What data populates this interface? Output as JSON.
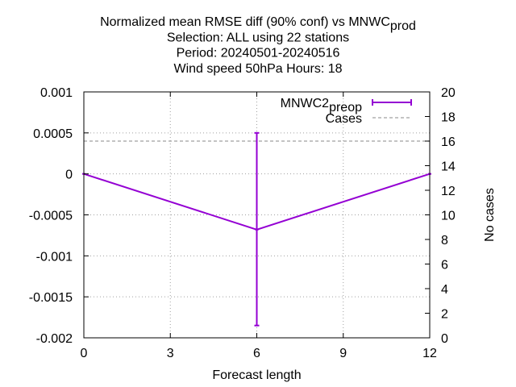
{
  "chart_data": {
    "type": "line",
    "title_lines": [
      [
        "Normalized mean RMSE diff (90% conf) vs MNWC",
        {
          "sub": "p"
        },
        "rod"
      ],
      [
        "Selection: ALL using    22 stations"
      ],
      [
        "Period: 20240501-20240516"
      ],
      [
        "Wind speed 50hPa   Hours:  18"
      ]
    ],
    "xlabel": "Forecast length",
    "ylabel_right": "No cases",
    "xlim": [
      0,
      12
    ],
    "ylim": [
      -0.002,
      0.001
    ],
    "y2lim": [
      0,
      20
    ],
    "xticks": [
      0,
      3,
      6,
      9,
      12
    ],
    "xtick_labels": [
      "0",
      "3",
      "6",
      "9",
      "12"
    ],
    "yticks": [
      -0.002,
      -0.0015,
      -0.001,
      -0.0005,
      0,
      0.0005,
      0.001
    ],
    "ytick_labels": [
      "-0.002",
      "-0.0015",
      "-0.001",
      "-0.0005",
      "0",
      "0.0005",
      "0.001"
    ],
    "y2ticks": [
      0,
      2,
      4,
      6,
      8,
      10,
      12,
      14,
      16,
      18,
      20
    ],
    "y2tick_labels": [
      "0",
      "2",
      "4",
      "6",
      "8",
      "10",
      "12",
      "14",
      "16",
      "18",
      "20"
    ],
    "grid": true,
    "legend_placement": "top-right",
    "series": [
      {
        "name_parts": [
          "MNWC2",
          {
            "sub": "p"
          },
          "reop"
        ],
        "color": "#9400d3",
        "axis": "left",
        "x": [
          0,
          6,
          12
        ],
        "y": [
          0,
          -0.00068,
          0
        ],
        "error_low": [
          null,
          -0.00185,
          null
        ],
        "error_high": [
          null,
          0.0005,
          null
        ]
      },
      {
        "name": "Cases",
        "color": "#a0a0a0",
        "axis": "right",
        "style": "dashed",
        "x": [
          0,
          6,
          12
        ],
        "y": [
          16,
          16,
          16
        ]
      }
    ]
  }
}
